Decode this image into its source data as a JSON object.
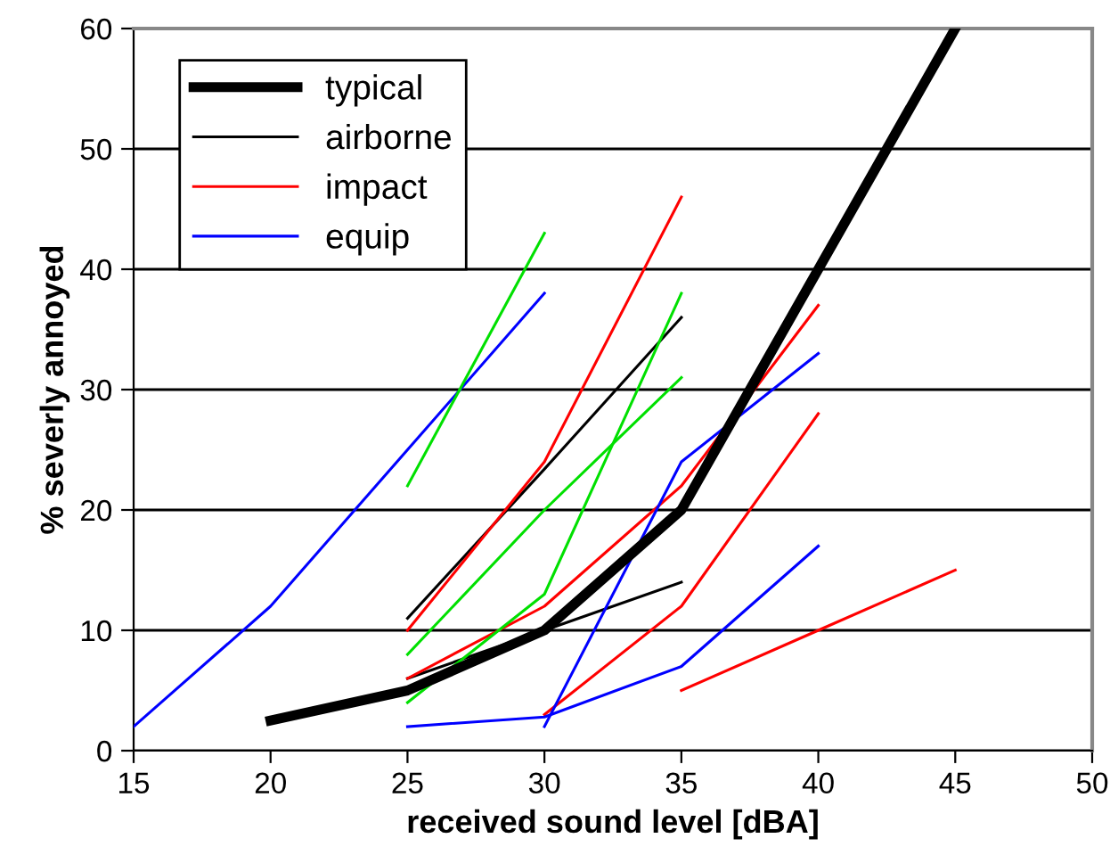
{
  "chart_data": {
    "type": "line",
    "xlabel": "received sound level [dBA]",
    "ylabel": "% severly annoyed",
    "xlim": [
      15,
      50
    ],
    "ylim": [
      0,
      60
    ],
    "xticks": [
      15,
      20,
      25,
      30,
      35,
      40,
      45,
      50
    ],
    "yticks": [
      0,
      10,
      20,
      30,
      40,
      50,
      60
    ],
    "grid": "y",
    "legend": "top left",
    "marker": "none",
    "line_style": "solid",
    "series": [
      {
        "name": "typical",
        "color": "#000000",
        "x": [
          20,
          25,
          30,
          35,
          40,
          45
        ],
        "values": [
          2.5,
          5,
          10,
          20,
          40,
          60
        ]
      },
      {
        "name": "airborne",
        "color": "#000000",
        "x": [
          25,
          30,
          35
        ],
        "values": [
          11,
          23.4,
          36
        ]
      },
      {
        "color": "#000000",
        "x": [
          25,
          30,
          35
        ],
        "values": [
          6,
          10,
          14
        ]
      },
      {
        "name": "impact",
        "color": "#ff0000",
        "x": [
          25,
          30,
          35
        ],
        "values": [
          10,
          24,
          46
        ]
      },
      {
        "color": "#ff0000",
        "x": [
          25,
          30,
          35,
          40
        ],
        "values": [
          6,
          12,
          22,
          37
        ]
      },
      {
        "color": "#ff0000",
        "x": [
          30,
          35,
          40
        ],
        "values": [
          3,
          12,
          28
        ]
      },
      {
        "color": "#ff0000",
        "x": [
          35,
          40,
          45
        ],
        "values": [
          5,
          10,
          15
        ]
      },
      {
        "name": "equip",
        "color": "#0000ff",
        "x": [
          15,
          20,
          25,
          30
        ],
        "values": [
          2,
          12,
          25,
          38
        ]
      },
      {
        "color": "#0000ff",
        "x": [
          25,
          30,
          35,
          40
        ],
        "values": [
          2,
          2.8,
          7,
          17
        ]
      },
      {
        "color": "#0000ff",
        "x": [
          30,
          35,
          40
        ],
        "values": [
          2,
          24,
          33
        ]
      },
      {
        "color": "#00e000",
        "x": [
          25,
          30
        ],
        "values": [
          22,
          43
        ]
      },
      {
        "color": "#00e000",
        "x": [
          25,
          30,
          35
        ],
        "values": [
          8,
          20,
          31
        ]
      },
      {
        "color": "#00e000",
        "x": [
          25,
          30,
          35
        ],
        "values": [
          4,
          13,
          38
        ]
      }
    ]
  }
}
